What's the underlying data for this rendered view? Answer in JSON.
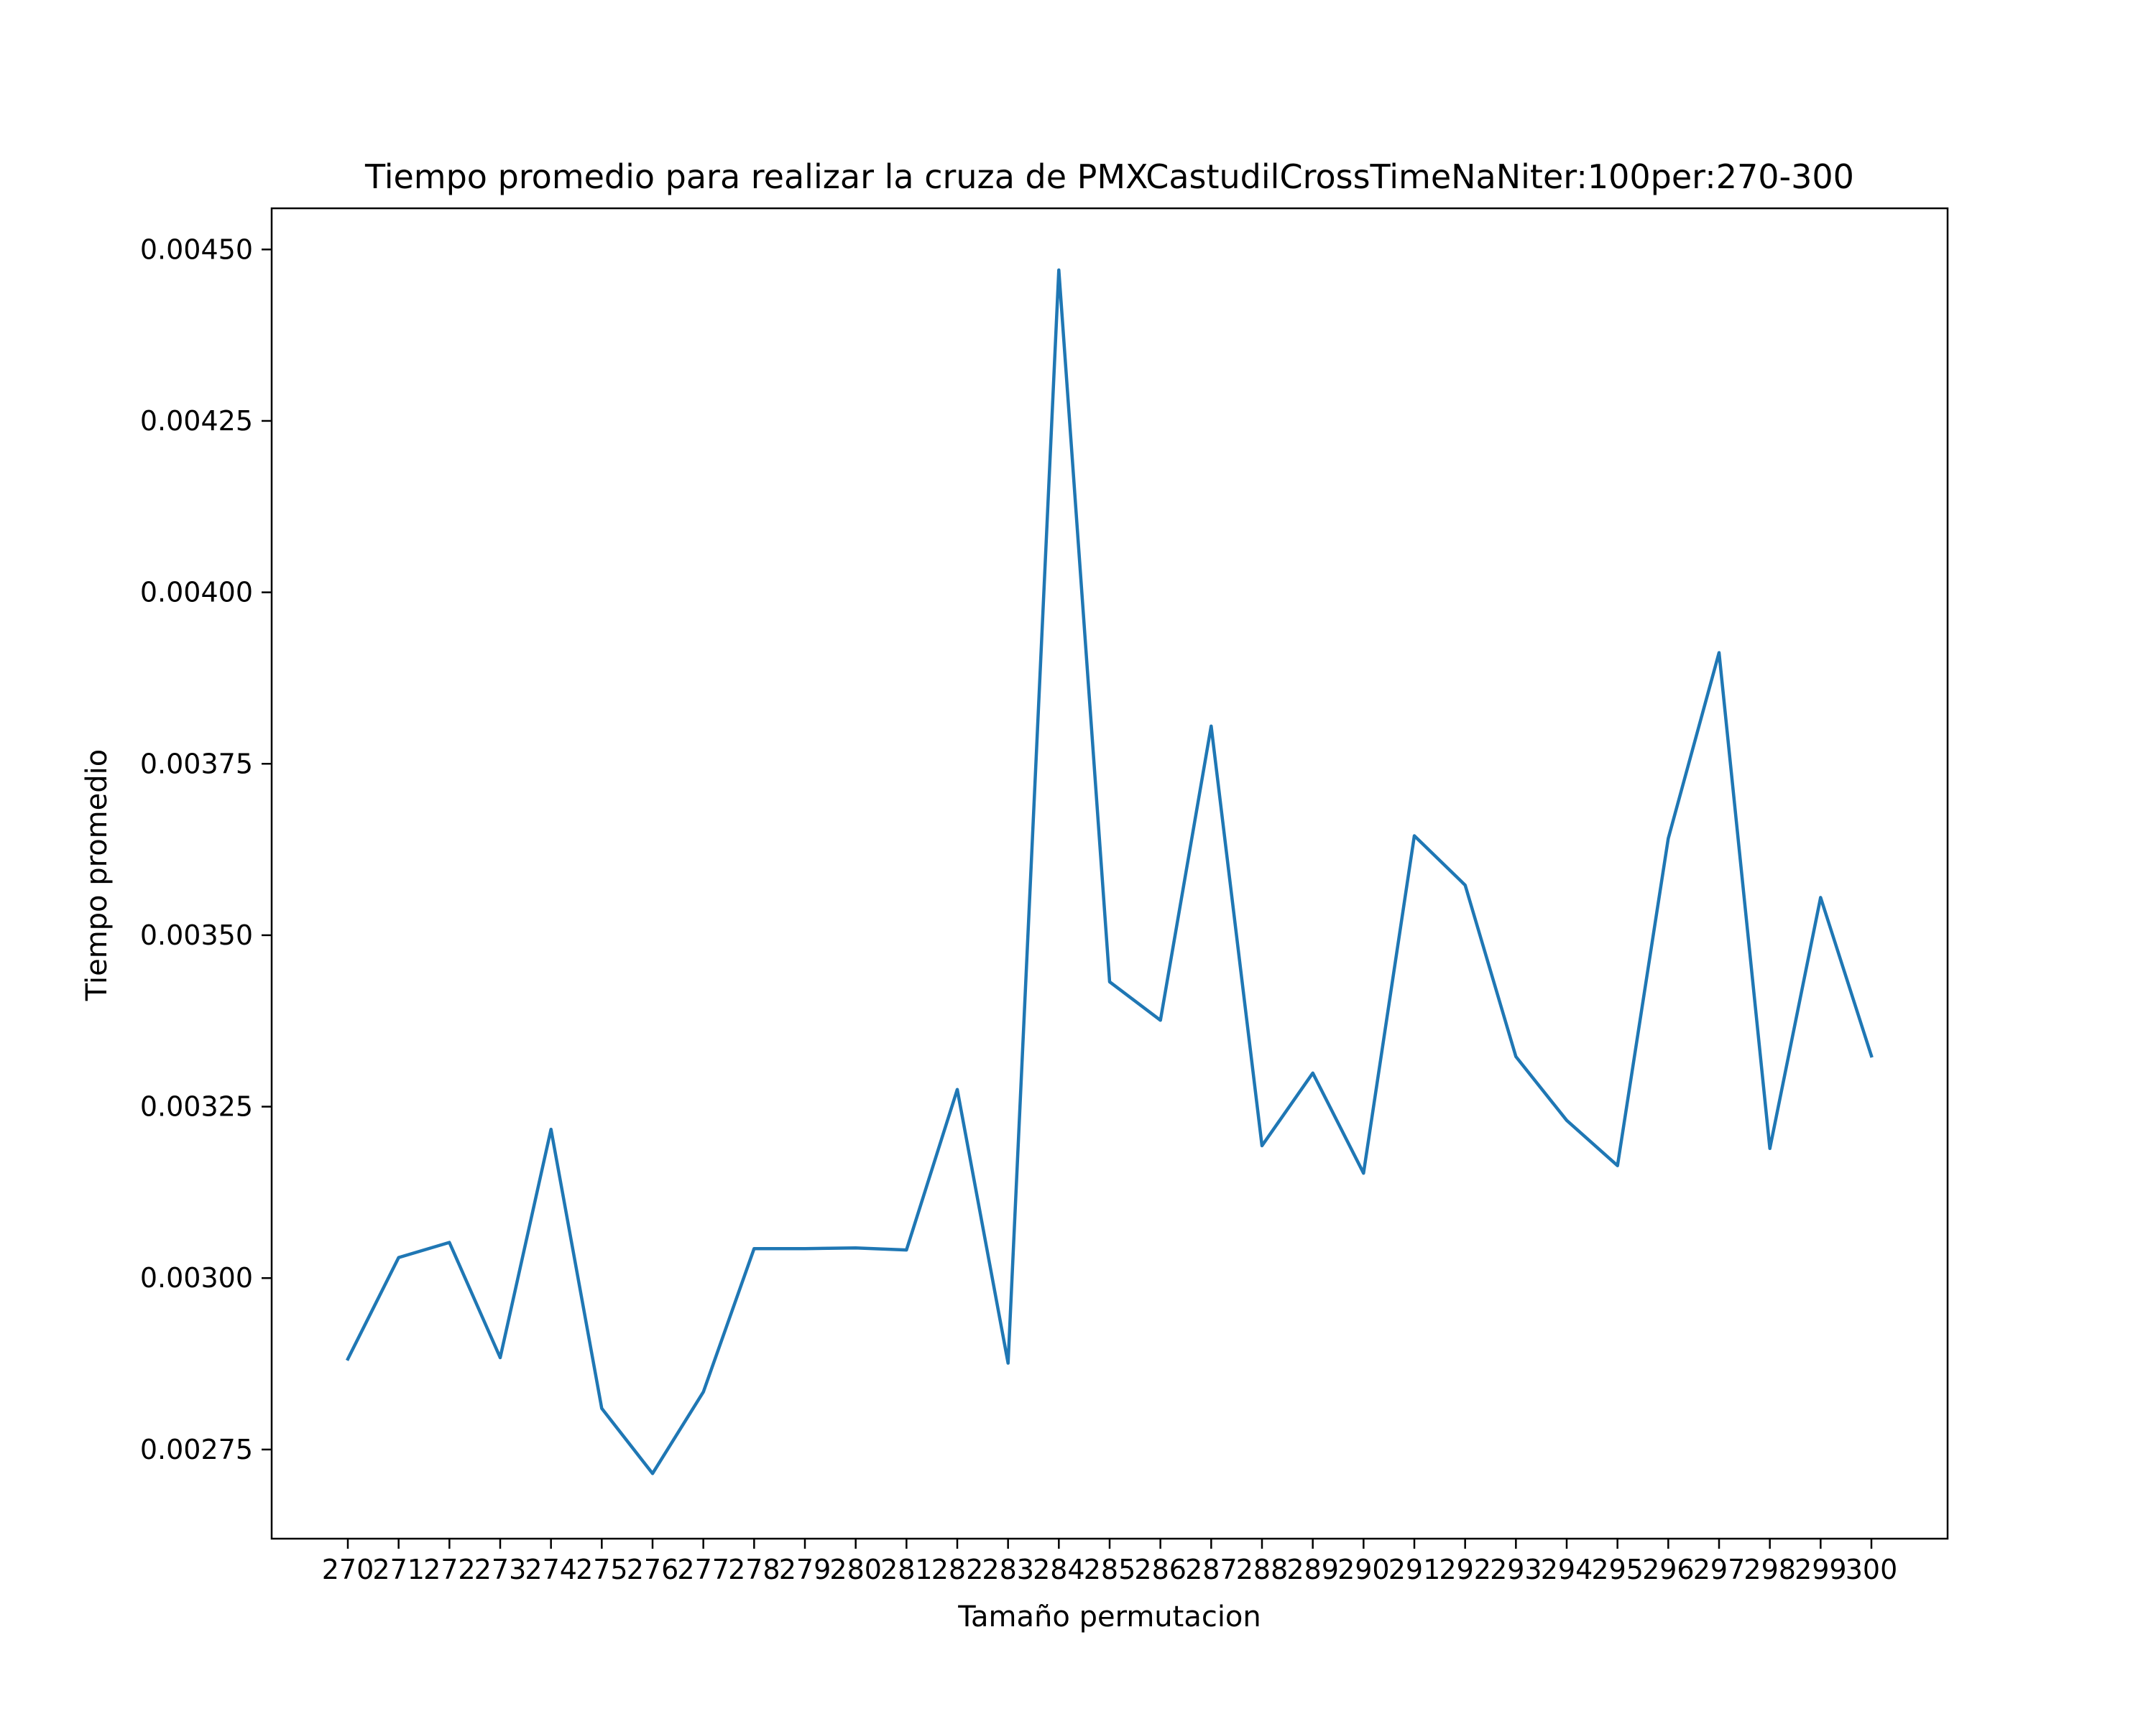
{
  "chart_data": {
    "type": "line",
    "title": "Tiempo promedio para realizar la cruza de PMXCastudilCrossTimeNaNiter:100per:270-300",
    "xlabel": "Tamaño permutacion",
    "ylabel": "Tiempo promedio",
    "x": [
      270,
      271,
      272,
      273,
      274,
      275,
      276,
      277,
      278,
      279,
      280,
      281,
      282,
      283,
      284,
      285,
      286,
      287,
      288,
      289,
      290,
      291,
      292,
      293,
      294,
      295,
      296,
      297,
      298,
      299,
      300
    ],
    "x_tick_labels": [
      "270",
      "271",
      "272",
      "273",
      "274",
      "275",
      "276",
      "277",
      "278",
      "279",
      "280",
      "281",
      "282",
      "283",
      "284",
      "285",
      "286",
      "287",
      "288",
      "289",
      "290",
      "291",
      "292",
      "293",
      "294",
      "295",
      "296",
      "297",
      "298",
      "299",
      "300"
    ],
    "y_ticks": [
      0.00275,
      0.003,
      0.00325,
      0.0035,
      0.00375,
      0.004,
      0.00425,
      0.0045
    ],
    "y_tick_labels": [
      "0.00275",
      "0.00300",
      "0.00325",
      "0.00350",
      "0.00375",
      "0.00400",
      "0.00425",
      "0.00450"
    ],
    "xlim": [
      268.5,
      301.5
    ],
    "ylim": [
      0.00262,
      0.00456
    ],
    "series": [
      {
        "color": "#1f77b4",
        "values": [
          0.002882,
          0.00303,
          0.003052,
          0.002884,
          0.003217,
          0.00281,
          0.002715,
          0.002834,
          0.003043,
          0.003043,
          0.003044,
          0.003041,
          0.003275,
          0.002876,
          0.00447,
          0.003432,
          0.003376,
          0.003805,
          0.003193,
          0.003299,
          0.003153,
          0.003645,
          0.003573,
          0.003323,
          0.00323,
          0.003164,
          0.003641,
          0.003912,
          0.003189,
          0.003555,
          0.003324
        ]
      }
    ],
    "grid": false,
    "legend": "none"
  }
}
